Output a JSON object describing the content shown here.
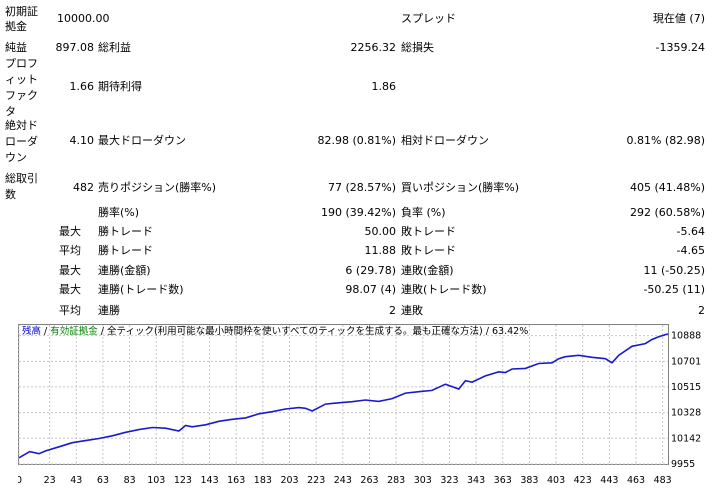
{
  "report": {
    "initial_deposit": {
      "label": "初期証拠金",
      "value": "10000.00"
    },
    "spread": {
      "label": "スプレッド",
      "value": "現在値 (7)"
    },
    "net_profit": {
      "label": "純益",
      "value": "897.08"
    },
    "gross_profit": {
      "label": "総利益",
      "value": "2256.32"
    },
    "gross_loss": {
      "label": "総損失",
      "value": "-1359.24"
    },
    "profit_factor": {
      "label": "プロフィットファクタ",
      "value": "1.66"
    },
    "expected_payoff": {
      "label": "期待利得",
      "value": "1.86"
    },
    "absolute_drawdown": {
      "label": "絶対ドローダウン",
      "value": "4.10"
    },
    "maximal_drawdown": {
      "label": "最大ドローダウン",
      "value": "82.98 (0.81%)"
    },
    "relative_drawdown": {
      "label": "相対ドローダウン",
      "value": "0.81% (82.98)"
    },
    "total_trades": {
      "label": "総取引数",
      "value": "482"
    },
    "short_positions": {
      "label": "売りポジション(勝率%)",
      "value": "77 (28.57%)"
    },
    "long_positions": {
      "label": "買いポジション(勝率%)",
      "value": "405 (41.48%)"
    },
    "win_rate": {
      "label": "勝率(%)",
      "value": "190 (39.42%)"
    },
    "loss_rate": {
      "label": "負率 (%)",
      "value": "292 (60.58%)"
    },
    "largest": {
      "prefix": "最大",
      "win_label": "勝トレード",
      "win_value": "50.00",
      "loss_label": "敗トレード",
      "loss_value": "-5.64"
    },
    "average": {
      "prefix": "平均",
      "win_label": "勝トレード",
      "win_value": "11.88",
      "loss_label": "敗トレード",
      "loss_value": "-4.65"
    },
    "max_consecutive": {
      "prefix": "最大",
      "win_label": "連勝(金額)",
      "win_value": "6 (29.78)",
      "loss_label": "連敗(金額)",
      "loss_value": "11 (-50.25)"
    },
    "max_consecutive_profit": {
      "prefix": "最大",
      "win_label": "連勝(トレード数)",
      "win_value": "98.07 (4)",
      "loss_label": "連敗(トレード数)",
      "loss_value": "-50.25 (11)"
    },
    "avg_consecutive": {
      "prefix": "平均",
      "win_label": "連勝",
      "win_value": "2",
      "loss_label": "連敗",
      "loss_value": "2"
    }
  },
  "chart_legend": {
    "balance": "残高",
    "sep1": " / ",
    "equity": "有効証拠金",
    "sep2": " / ",
    "model": "全ティック(利用可能な最小時間枠を使いすべてのティックを生成する。最も正確な方法)",
    "sep3": " / ",
    "quality": "63.42%"
  },
  "colors": {
    "balance": "#0000cc",
    "equity": "#008000",
    "line": "#1a1acc",
    "grid": "#c8c8c8"
  },
  "chart_data": {
    "type": "line",
    "title": "",
    "xlabel": "",
    "ylabel": "",
    "x_ticks": [
      0,
      23,
      43,
      63,
      83,
      103,
      123,
      143,
      163,
      183,
      203,
      223,
      243,
      263,
      283,
      303,
      323,
      343,
      363,
      383,
      403,
      423,
      443,
      463,
      483
    ],
    "y_ticks": [
      9955,
      10142,
      10328,
      10515,
      10701,
      10888
    ],
    "xlim": [
      0,
      487
    ],
    "ylim": [
      9955,
      10965
    ],
    "grid": true,
    "series": [
      {
        "x": [
          0,
          8,
          15,
          20,
          30,
          40,
          50,
          60,
          70,
          80,
          90,
          100,
          110,
          120,
          125,
          130,
          140,
          150,
          160,
          170,
          180,
          190,
          200,
          210,
          215,
          220,
          230,
          235,
          240,
          250,
          260,
          270,
          280,
          290,
          300,
          310,
          320,
          330,
          335,
          340,
          350,
          360,
          365,
          370,
          380,
          390,
          400,
          405,
          410,
          420,
          430,
          440,
          445,
          450,
          460,
          470,
          475,
          480,
          487
        ],
        "y": [
          10000,
          10045,
          10030,
          10050,
          10080,
          10110,
          10125,
          10140,
          10160,
          10185,
          10205,
          10220,
          10215,
          10195,
          10235,
          10225,
          10240,
          10265,
          10280,
          10290,
          10320,
          10335,
          10355,
          10365,
          10360,
          10340,
          10390,
          10395,
          10400,
          10408,
          10420,
          10410,
          10430,
          10470,
          10480,
          10490,
          10535,
          10500,
          10560,
          10550,
          10595,
          10625,
          10620,
          10645,
          10650,
          10685,
          10690,
          10720,
          10735,
          10745,
          10730,
          10720,
          10690,
          10745,
          10810,
          10830,
          10860,
          10880,
          10900
        ]
      }
    ]
  }
}
